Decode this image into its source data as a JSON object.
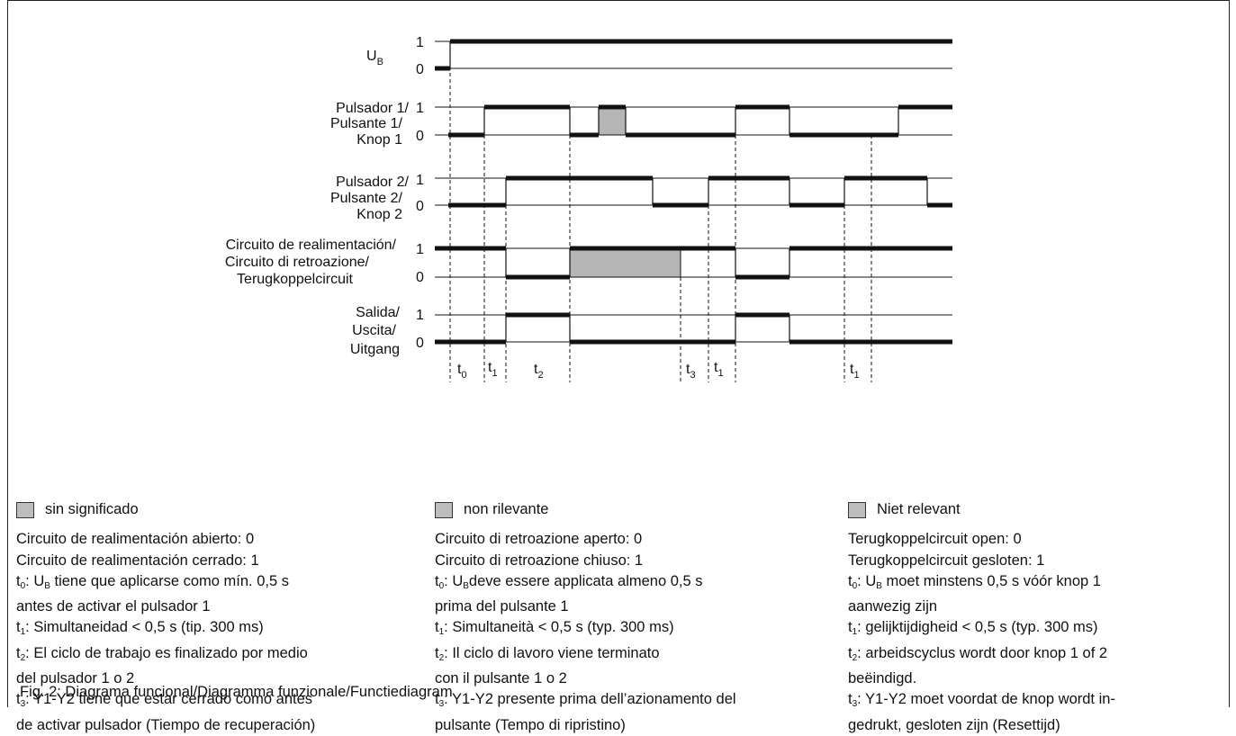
{
  "signals": [
    {
      "label_lines": [
        "U",
        ""
      ],
      "label_sub": "B",
      "high": "1",
      "low": "0"
    },
    {
      "label_lines": [
        "Pulsador 1/",
        "Pulsante 1/",
        "Knop 1"
      ],
      "high": "1",
      "low": "0"
    },
    {
      "label_lines": [
        "Pulsador 2/",
        "Pulsante 2/",
        "Knop 2"
      ],
      "high": "1",
      "low": "0"
    },
    {
      "label_lines": [
        "Circuito de realimentación/",
        "Circuito di retroazione/",
        "Terugkoppelcircuit"
      ],
      "high": "1",
      "low": "0"
    },
    {
      "label_lines": [
        "Salida/",
        "Uscita/",
        "Uitgang"
      ],
      "high": "1",
      "low": "0"
    }
  ],
  "time_labels": [
    {
      "t": "t",
      "sub": "0"
    },
    {
      "t": "t",
      "sub": "1"
    },
    {
      "t": "t",
      "sub": "2"
    },
    {
      "t": "t",
      "sub": "3"
    },
    {
      "t": "t",
      "sub": "1"
    },
    {
      "t": "t",
      "sub": "1"
    }
  ],
  "legend": {
    "es": {
      "swatch": "sin significado",
      "l1": "Circuito de realimentación abierto: 0",
      "l2": "Circuito de realimentación cerrado: 1",
      "t0_a": ": U",
      "t0_b": " tiene que aplicarse como mín. 0,5 s",
      "t0_c": "antes de activar el pulsador 1",
      "t1": ": Simultaneidad < 0,5 s (tip. 300 ms)",
      "t2_a": ": El ciclo de trabajo es finalizado por medio",
      "t2_b": "del pulsador 1 o 2",
      "t3_a": ": Y1-Y2 tiene que estar cerrado como  antes",
      "t3_b": "de activar pulsador (Tiempo de recuperación)"
    },
    "it": {
      "swatch": "non rilevante",
      "l1": "Circuito di retroazione aperto: 0",
      "l2": "Circuito di retroazione chiuso: 1",
      "t0_a": ": U",
      "t0_b": "deve essere applicata almeno 0,5 s",
      "t0_c": "prima del pulsante 1",
      "t1": ": Simultaneità < 0,5 s (typ. 300 ms)",
      "t2_a": ": Il ciclo di lavoro viene terminato",
      "t2_b": "con il pulsante 1 o 2",
      "t3_a": ": Y1-Y2 presente prima dell’azionamento del",
      "t3_b": "pulsante (Tempo di ripristino)"
    },
    "nl": {
      "swatch": "Niet relevant",
      "l1": "Terugkoppelcircuit open: 0",
      "l2": "Terugkoppelcircuit gesloten: 1",
      "t0_a": ": U",
      "t0_b": " moet minstens 0,5 s vóór knop 1",
      "t0_c": "aanwezig zijn",
      "t1": ": gelijktijdigheid < 0,5 s (typ. 300 ms)",
      "t2_a": ": arbeidscyclus wordt door knop 1 of 2",
      "t2_b": "beëindigd.",
      "t3_a": ": Y1-Y2 moet voordat de knop wordt in-",
      "t3_b": "gedrukt, gesloten zijn (Resettijd)"
    },
    "sym_t": "t",
    "sym_sub0": "0",
    "sym_sub1": "1",
    "sym_sub2": "2",
    "sym_sub3": "3",
    "sym_subB": "B"
  },
  "caption": "Fig. 2: Diagrama funcional/Diagramma funzionale/Functiediagram",
  "colors": {
    "signal": "#111111",
    "dont_care_fill": "#b5b5b5"
  }
}
